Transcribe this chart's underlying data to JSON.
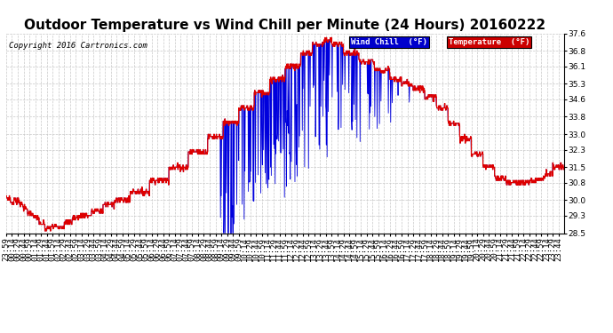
{
  "title": "Outdoor Temperature vs Wind Chill per Minute (24 Hours) 20160222",
  "copyright": "Copyright 2016 Cartronics.com",
  "ylim": [
    28.5,
    37.6
  ],
  "yticks": [
    28.5,
    29.3,
    30.0,
    30.8,
    31.5,
    32.3,
    33.0,
    33.8,
    34.6,
    35.3,
    36.1,
    36.8,
    37.6
  ],
  "bg_color": "#ffffff",
  "grid_color": "#c8c8c8",
  "temp_color": "#dd0000",
  "wind_color": "#0000dd",
  "legend_wind_bg": "#0000cc",
  "legend_temp_bg": "#cc0000",
  "title_fontsize": 11,
  "tick_fontsize": 6.5,
  "copyright_fontsize": 6.5
}
